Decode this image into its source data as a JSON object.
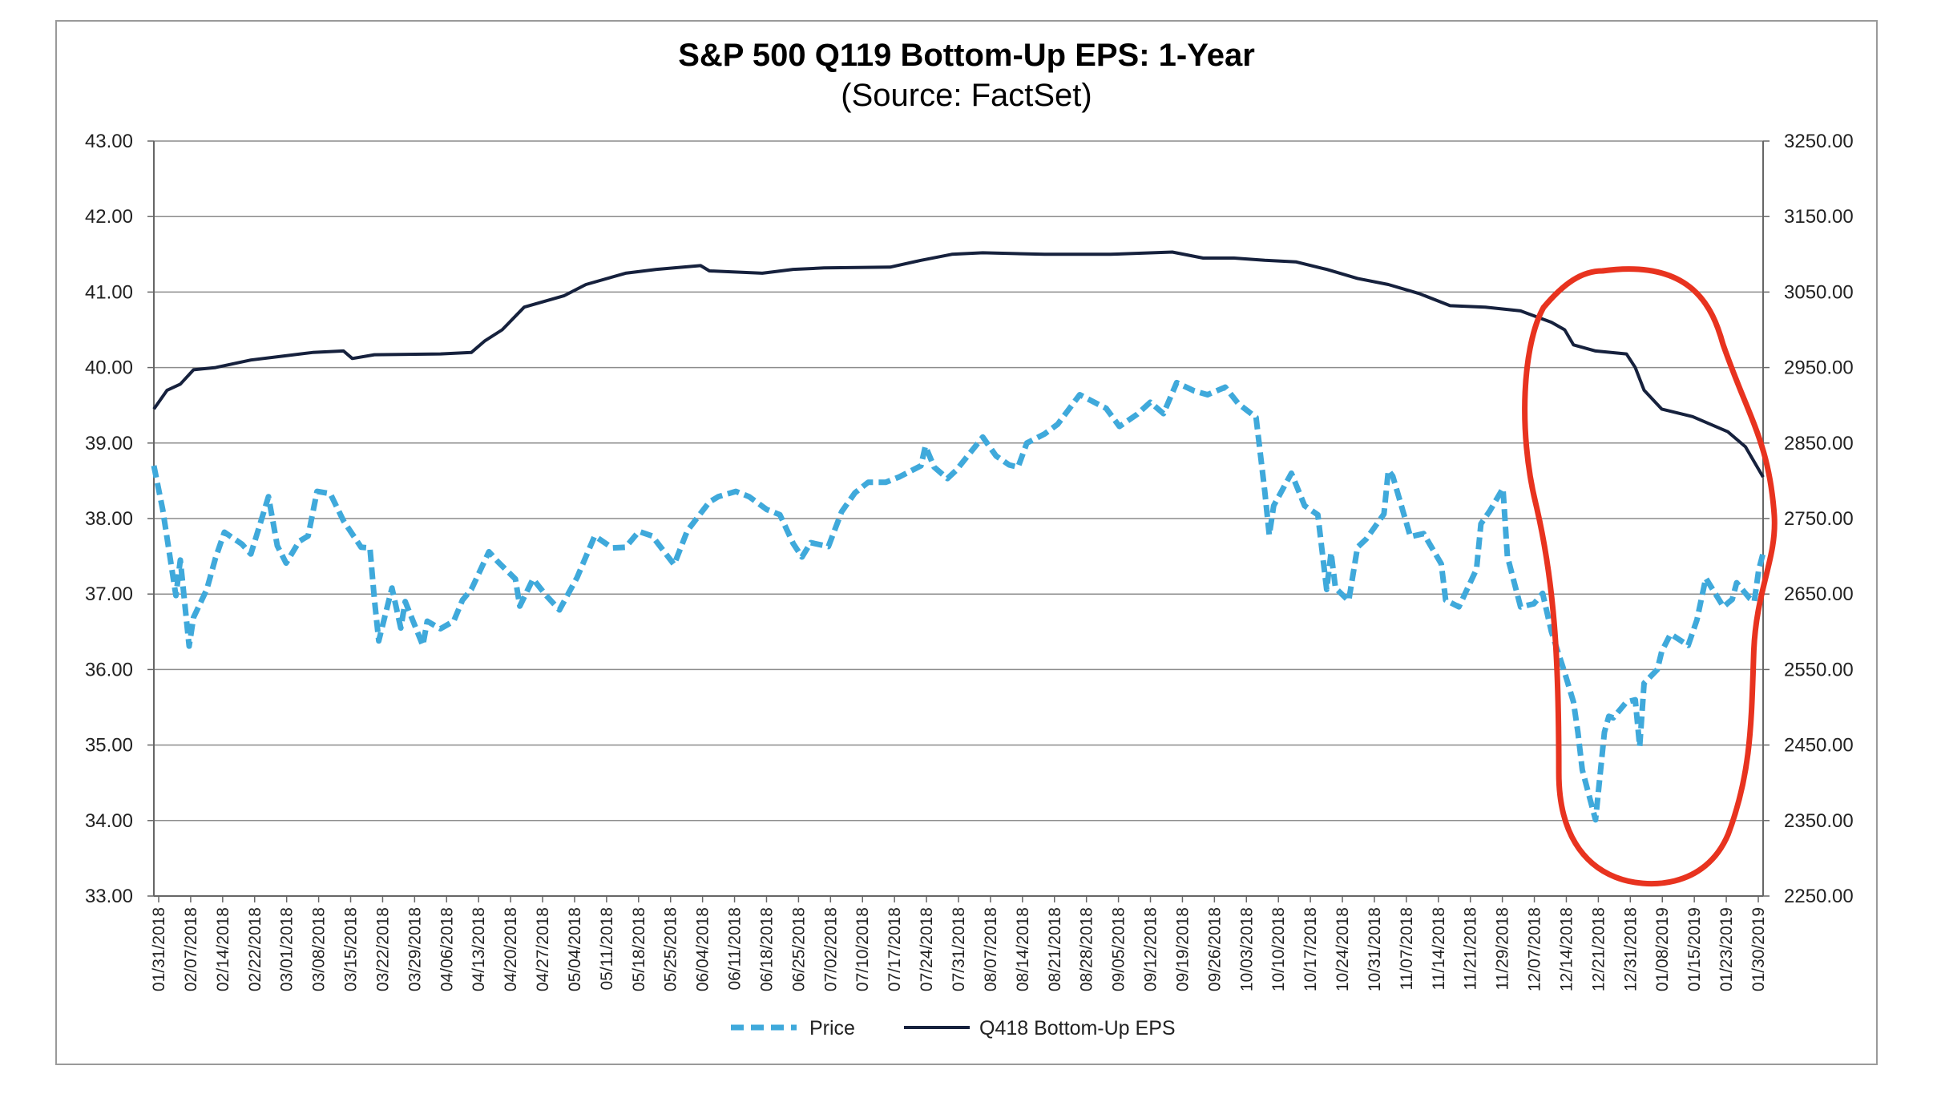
{
  "chart_data": {
    "type": "line",
    "title": "S&P 500 Q119 Bottom-Up EPS: 1-Year",
    "subtitle": "(Source: FactSet)",
    "left_axis": {
      "range": [
        33.0,
        43.0
      ],
      "ticks": [
        "43.00",
        "42.00",
        "41.00",
        "40.00",
        "39.00",
        "38.00",
        "37.00",
        "36.00",
        "35.00",
        "34.00",
        "33.00"
      ]
    },
    "right_axis": {
      "range": [
        2250.0,
        3250.0
      ],
      "ticks": [
        "3250.00",
        "3150.00",
        "3050.00",
        "2950.00",
        "2850.00",
        "2750.00",
        "2650.00",
        "2550.00",
        "2450.00",
        "2350.00",
        "2250.00"
      ]
    },
    "x_axis": {
      "range": [
        "01/31/2018",
        "01/31/2019"
      ],
      "tick_labels": [
        "01/31/2018",
        "02/07/2018",
        "02/14/2018",
        "02/22/2018",
        "03/01/2018",
        "03/08/2018",
        "03/15/2018",
        "03/22/2018",
        "03/29/2018",
        "04/06/2018",
        "04/13/2018",
        "04/20/2018",
        "04/27/2018",
        "05/04/2018",
        "05/11/2018",
        "05/18/2018",
        "05/25/2018",
        "06/04/2018",
        "06/11/2018",
        "06/18/2018",
        "06/25/2018",
        "07/02/2018",
        "07/10/2018",
        "07/17/2018",
        "07/24/2018",
        "07/31/2018",
        "08/07/2018",
        "08/14/2018",
        "08/21/2018",
        "08/28/2018",
        "09/05/2018",
        "09/12/2018",
        "09/19/2018",
        "09/26/2018",
        "10/03/2018",
        "10/10/2018",
        "10/17/2018",
        "10/24/2018",
        "10/31/2018",
        "11/07/2018",
        "11/14/2018",
        "11/21/2018",
        "11/29/2018",
        "12/07/2018",
        "12/14/2018",
        "12/21/2018",
        "12/31/2018",
        "01/08/2019",
        "01/15/2019",
        "01/23/2019",
        "01/30/2019"
      ]
    },
    "grid": true,
    "legend_position": "bottom",
    "series": [
      {
        "name": "Price",
        "axis": "right",
        "style": "dashed",
        "color": "#3fa9db",
        "points": [
          [
            "01/31/2018",
            2820
          ],
          [
            "02/02/2018",
            2762
          ],
          [
            "02/05/2018",
            2648
          ],
          [
            "02/06/2018",
            2695
          ],
          [
            "02/08/2018",
            2581
          ],
          [
            "02/09/2018",
            2619
          ],
          [
            "02/12/2018",
            2656
          ],
          [
            "02/14/2018",
            2698
          ],
          [
            "02/16/2018",
            2732
          ],
          [
            "02/20/2018",
            2716
          ],
          [
            "02/22/2018",
            2703
          ],
          [
            "02/26/2018",
            2779
          ],
          [
            "02/28/2018",
            2714
          ],
          [
            "03/02/2018",
            2691
          ],
          [
            "03/05/2018",
            2720
          ],
          [
            "03/07/2018",
            2727
          ],
          [
            "03/09/2018",
            2786
          ],
          [
            "03/12/2018",
            2783
          ],
          [
            "03/15/2018",
            2747
          ],
          [
            "03/19/2018",
            2712
          ],
          [
            "03/21/2018",
            2711
          ],
          [
            "03/22/2018",
            2644
          ],
          [
            "03/23/2018",
            2588
          ],
          [
            "03/26/2018",
            2658
          ],
          [
            "03/28/2018",
            2605
          ],
          [
            "03/29/2018",
            2640
          ],
          [
            "04/02/2018",
            2582
          ],
          [
            "04/03/2018",
            2614
          ],
          [
            "04/06/2018",
            2604
          ],
          [
            "04/09/2018",
            2614
          ],
          [
            "04/11/2018",
            2642
          ],
          [
            "04/13/2018",
            2656
          ],
          [
            "04/17/2018",
            2706
          ],
          [
            "04/19/2018",
            2693
          ],
          [
            "04/23/2018",
            2670
          ],
          [
            "04/24/2018",
            2634
          ],
          [
            "04/27/2018",
            2670
          ],
          [
            "04/30/2018",
            2648
          ],
          [
            "05/03/2018",
            2629
          ],
          [
            "05/07/2018",
            2672
          ],
          [
            "05/11/2018",
            2727
          ],
          [
            "05/15/2018",
            2711
          ],
          [
            "05/18/2018",
            2712
          ],
          [
            "05/21/2018",
            2733
          ],
          [
            "05/24/2018",
            2727
          ],
          [
            "05/29/2018",
            2689
          ],
          [
            "06/01/2018",
            2734
          ],
          [
            "06/06/2018",
            2772
          ],
          [
            "06/08/2018",
            2779
          ],
          [
            "06/12/2018",
            2786
          ],
          [
            "06/15/2018",
            2779
          ],
          [
            "06/19/2018",
            2762
          ],
          [
            "06/22/2018",
            2755
          ],
          [
            "06/25/2018",
            2717
          ],
          [
            "06/27/2018",
            2699
          ],
          [
            "06/29/2018",
            2718
          ],
          [
            "07/03/2018",
            2713
          ],
          [
            "07/06/2018",
            2759
          ],
          [
            "07/09/2018",
            2784
          ],
          [
            "07/12/2018",
            2798
          ],
          [
            "07/16/2018",
            2798
          ],
          [
            "07/19/2018",
            2805
          ],
          [
            "07/24/2018",
            2820
          ],
          [
            "07/25/2018",
            2846
          ],
          [
            "07/27/2018",
            2818
          ],
          [
            "07/30/2018",
            2803
          ],
          [
            "08/01/2018",
            2814
          ],
          [
            "08/07/2018",
            2858
          ],
          [
            "08/10/2018",
            2833
          ],
          [
            "08/13/2018",
            2821
          ],
          [
            "08/15/2018",
            2818
          ],
          [
            "08/17/2018",
            2850
          ],
          [
            "08/21/2018",
            2862
          ],
          [
            "08/24/2018",
            2875
          ],
          [
            "08/29/2018",
            2914
          ],
          [
            "09/04/2018",
            2896
          ],
          [
            "09/07/2018",
            2872
          ],
          [
            "09/11/2018",
            2888
          ],
          [
            "09/14/2018",
            2904
          ],
          [
            "09/17/2018",
            2889
          ],
          [
            "09/20/2018",
            2930
          ],
          [
            "09/24/2018",
            2919
          ],
          [
            "09/27/2018",
            2914
          ],
          [
            "10/01/2018",
            2924
          ],
          [
            "10/04/2018",
            2902
          ],
          [
            "10/08/2018",
            2884
          ],
          [
            "10/10/2018",
            2785
          ],
          [
            "10/11/2018",
            2728
          ],
          [
            "10/12/2018",
            2767
          ],
          [
            "10/16/2018",
            2810
          ],
          [
            "10/19/2018",
            2767
          ],
          [
            "10/22/2018",
            2755
          ],
          [
            "10/24/2018",
            2656
          ],
          [
            "10/25/2018",
            2705
          ],
          [
            "10/26/2018",
            2658
          ],
          [
            "10/29/2018",
            2641
          ],
          [
            "10/31/2018",
            2712
          ],
          [
            "11/02/2018",
            2723
          ],
          [
            "11/06/2018",
            2756
          ],
          [
            "11/07/2018",
            2814
          ],
          [
            "11/08/2018",
            2806
          ],
          [
            "11/12/2018",
            2726
          ],
          [
            "11/15/2018",
            2730
          ],
          [
            "11/19/2018",
            2690
          ],
          [
            "11/20/2018",
            2642
          ],
          [
            "11/23/2018",
            2633
          ],
          [
            "11/27/2018",
            2683
          ],
          [
            "11/28/2018",
            2743
          ],
          [
            "11/30/2018",
            2760
          ],
          [
            "12/03/2018",
            2790
          ],
          [
            "12/04/2018",
            2700
          ],
          [
            "12/07/2018",
            2633
          ],
          [
            "12/10/2018",
            2637
          ],
          [
            "12/12/2018",
            2651
          ],
          [
            "12/14/2018",
            2600
          ],
          [
            "12/17/2018",
            2546
          ],
          [
            "12/19/2018",
            2507
          ],
          [
            "12/20/2018",
            2467
          ],
          [
            "12/21/2018",
            2417
          ],
          [
            "12/24/2018",
            2351
          ],
          [
            "12/26/2018",
            2467
          ],
          [
            "12/27/2018",
            2488
          ],
          [
            "12/28/2018",
            2486
          ],
          [
            "12/31/2018",
            2507
          ],
          [
            "01/02/2019",
            2510
          ],
          [
            "01/03/2019",
            2448
          ],
          [
            "01/04/2019",
            2532
          ],
          [
            "01/07/2019",
            2550
          ],
          [
            "01/08/2019",
            2574
          ],
          [
            "01/10/2019",
            2597
          ],
          [
            "01/14/2019",
            2582
          ],
          [
            "01/16/2019",
            2616
          ],
          [
            "01/18/2019",
            2671
          ],
          [
            "01/22/2019",
            2633
          ],
          [
            "01/24/2019",
            2643
          ],
          [
            "01/25/2019",
            2665
          ],
          [
            "01/28/2019",
            2644
          ],
          [
            "01/29/2019",
            2640
          ],
          [
            "01/30/2019",
            2682
          ],
          [
            "01/31/2019",
            2704
          ]
        ]
      },
      {
        "name": "Q418 Bottom-Up EPS",
        "axis": "left",
        "style": "solid",
        "color": "#16213d",
        "points": [
          [
            "01/31/2018",
            39.45
          ],
          [
            "02/03/2018",
            39.7
          ],
          [
            "02/06/2018",
            39.78
          ],
          [
            "02/09/2018",
            39.97
          ],
          [
            "02/14/2018",
            40.0
          ],
          [
            "02/22/2018",
            40.1
          ],
          [
            "03/01/2018",
            40.15
          ],
          [
            "03/08/2018",
            40.2
          ],
          [
            "03/15/2018",
            40.22
          ],
          [
            "03/17/2018",
            40.12
          ],
          [
            "03/22/2018",
            40.17
          ],
          [
            "04/06/2018",
            40.18
          ],
          [
            "04/13/2018",
            40.2
          ],
          [
            "04/16/2018",
            40.35
          ],
          [
            "04/20/2018",
            40.5
          ],
          [
            "04/25/2018",
            40.8
          ],
          [
            "05/04/2018",
            40.95
          ],
          [
            "05/09/2018",
            41.1
          ],
          [
            "05/18/2018",
            41.25
          ],
          [
            "05/25/2018",
            41.3
          ],
          [
            "06/04/2018",
            41.35
          ],
          [
            "06/06/2018",
            41.28
          ],
          [
            "06/18/2018",
            41.25
          ],
          [
            "06/25/2018",
            41.3
          ],
          [
            "07/02/2018",
            41.32
          ],
          [
            "07/17/2018",
            41.33
          ],
          [
            "07/24/2018",
            41.42
          ],
          [
            "07/31/2018",
            41.5
          ],
          [
            "08/07/2018",
            41.52
          ],
          [
            "08/21/2018",
            41.5
          ],
          [
            "09/05/2018",
            41.5
          ],
          [
            "09/19/2018",
            41.53
          ],
          [
            "09/26/2018",
            41.45
          ],
          [
            "10/03/2018",
            41.45
          ],
          [
            "10/10/2018",
            41.42
          ],
          [
            "10/17/2018",
            41.4
          ],
          [
            "10/24/2018",
            41.3
          ],
          [
            "10/31/2018",
            41.18
          ],
          [
            "11/07/2018",
            41.1
          ],
          [
            "11/14/2018",
            40.98
          ],
          [
            "11/21/2018",
            40.82
          ],
          [
            "11/29/2018",
            40.8
          ],
          [
            "12/07/2018",
            40.75
          ],
          [
            "12/14/2018",
            40.6
          ],
          [
            "12/17/2018",
            40.5
          ],
          [
            "12/19/2018",
            40.3
          ],
          [
            "12/24/2018",
            40.22
          ],
          [
            "12/31/2018",
            40.18
          ],
          [
            "01/02/2019",
            40.0
          ],
          [
            "01/04/2019",
            39.7
          ],
          [
            "01/08/2019",
            39.45
          ],
          [
            "01/15/2019",
            39.35
          ],
          [
            "01/23/2019",
            39.15
          ],
          [
            "01/27/2019",
            38.95
          ],
          [
            "01/31/2019",
            38.55
          ]
        ]
      }
    ],
    "annotation": {
      "shape": "freehand ellipse",
      "color": "#e8331f",
      "span": [
        "12/10/2018",
        "01/31/2019"
      ]
    }
  }
}
